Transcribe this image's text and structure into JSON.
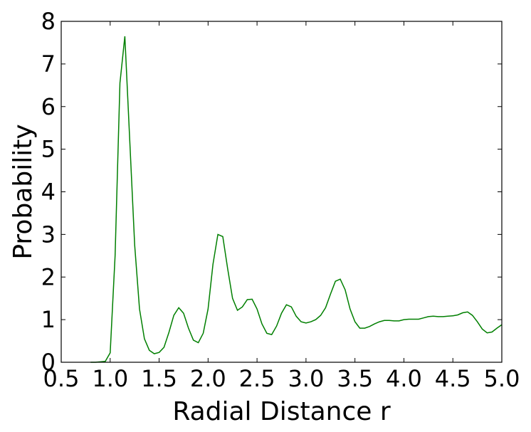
{
  "chart_data": {
    "type": "line",
    "title": "",
    "xlabel": "Radial Distance r",
    "ylabel": "Probability",
    "xlim": [
      0.5,
      5.0
    ],
    "ylim": [
      0,
      8
    ],
    "xticks": [
      "0.5",
      "1.0",
      "1.5",
      "2.0",
      "2.5",
      "3.0",
      "3.5",
      "4.0",
      "4.5",
      "5.0"
    ],
    "yticks": [
      "0",
      "1",
      "2",
      "3",
      "4",
      "5",
      "6",
      "7",
      "8"
    ],
    "grid": false,
    "legend": "none",
    "line_color": "#007f00",
    "series": [
      {
        "x": [
          0.8,
          0.85,
          0.9,
          0.95,
          1.0,
          1.05,
          1.1,
          1.15,
          1.2,
          1.25,
          1.3,
          1.35,
          1.4,
          1.45,
          1.5,
          1.55,
          1.6,
          1.65,
          1.7,
          1.75,
          1.8,
          1.85,
          1.9,
          1.95,
          2.0,
          2.05,
          2.1,
          2.15,
          2.2,
          2.25,
          2.3,
          2.35,
          2.4,
          2.45,
          2.5,
          2.55,
          2.6,
          2.65,
          2.7,
          2.75,
          2.8,
          2.85,
          2.9,
          2.95,
          3.0,
          3.05,
          3.1,
          3.15,
          3.2,
          3.25,
          3.3,
          3.35,
          3.4,
          3.45,
          3.5,
          3.55,
          3.6,
          3.65,
          3.7,
          3.75,
          3.8,
          3.85,
          3.9,
          3.95,
          4.0,
          4.05,
          4.1,
          4.15,
          4.2,
          4.25,
          4.3,
          4.35,
          4.4,
          4.45,
          4.5,
          4.55,
          4.6,
          4.65,
          4.7,
          4.75,
          4.8,
          4.85,
          4.9,
          4.95,
          5.0
        ],
        "values": [
          0.0,
          0.0,
          0.01,
          0.02,
          0.22,
          2.5,
          6.55,
          7.65,
          5.2,
          2.75,
          1.25,
          0.55,
          0.28,
          0.2,
          0.23,
          0.35,
          0.7,
          1.1,
          1.28,
          1.15,
          0.8,
          0.52,
          0.46,
          0.68,
          1.25,
          2.3,
          3.0,
          2.95,
          2.2,
          1.5,
          1.22,
          1.3,
          1.47,
          1.48,
          1.25,
          0.9,
          0.68,
          0.65,
          0.85,
          1.15,
          1.35,
          1.3,
          1.08,
          0.95,
          0.92,
          0.95,
          1.0,
          1.1,
          1.28,
          1.6,
          1.9,
          1.95,
          1.7,
          1.25,
          0.95,
          0.8,
          0.8,
          0.84,
          0.9,
          0.95,
          0.98,
          0.98,
          0.97,
          0.97,
          1.0,
          1.01,
          1.01,
          1.01,
          1.04,
          1.07,
          1.08,
          1.07,
          1.07,
          1.08,
          1.09,
          1.11,
          1.16,
          1.18,
          1.1,
          0.95,
          0.78,
          0.69,
          0.71,
          0.8,
          0.88
        ]
      }
    ]
  }
}
